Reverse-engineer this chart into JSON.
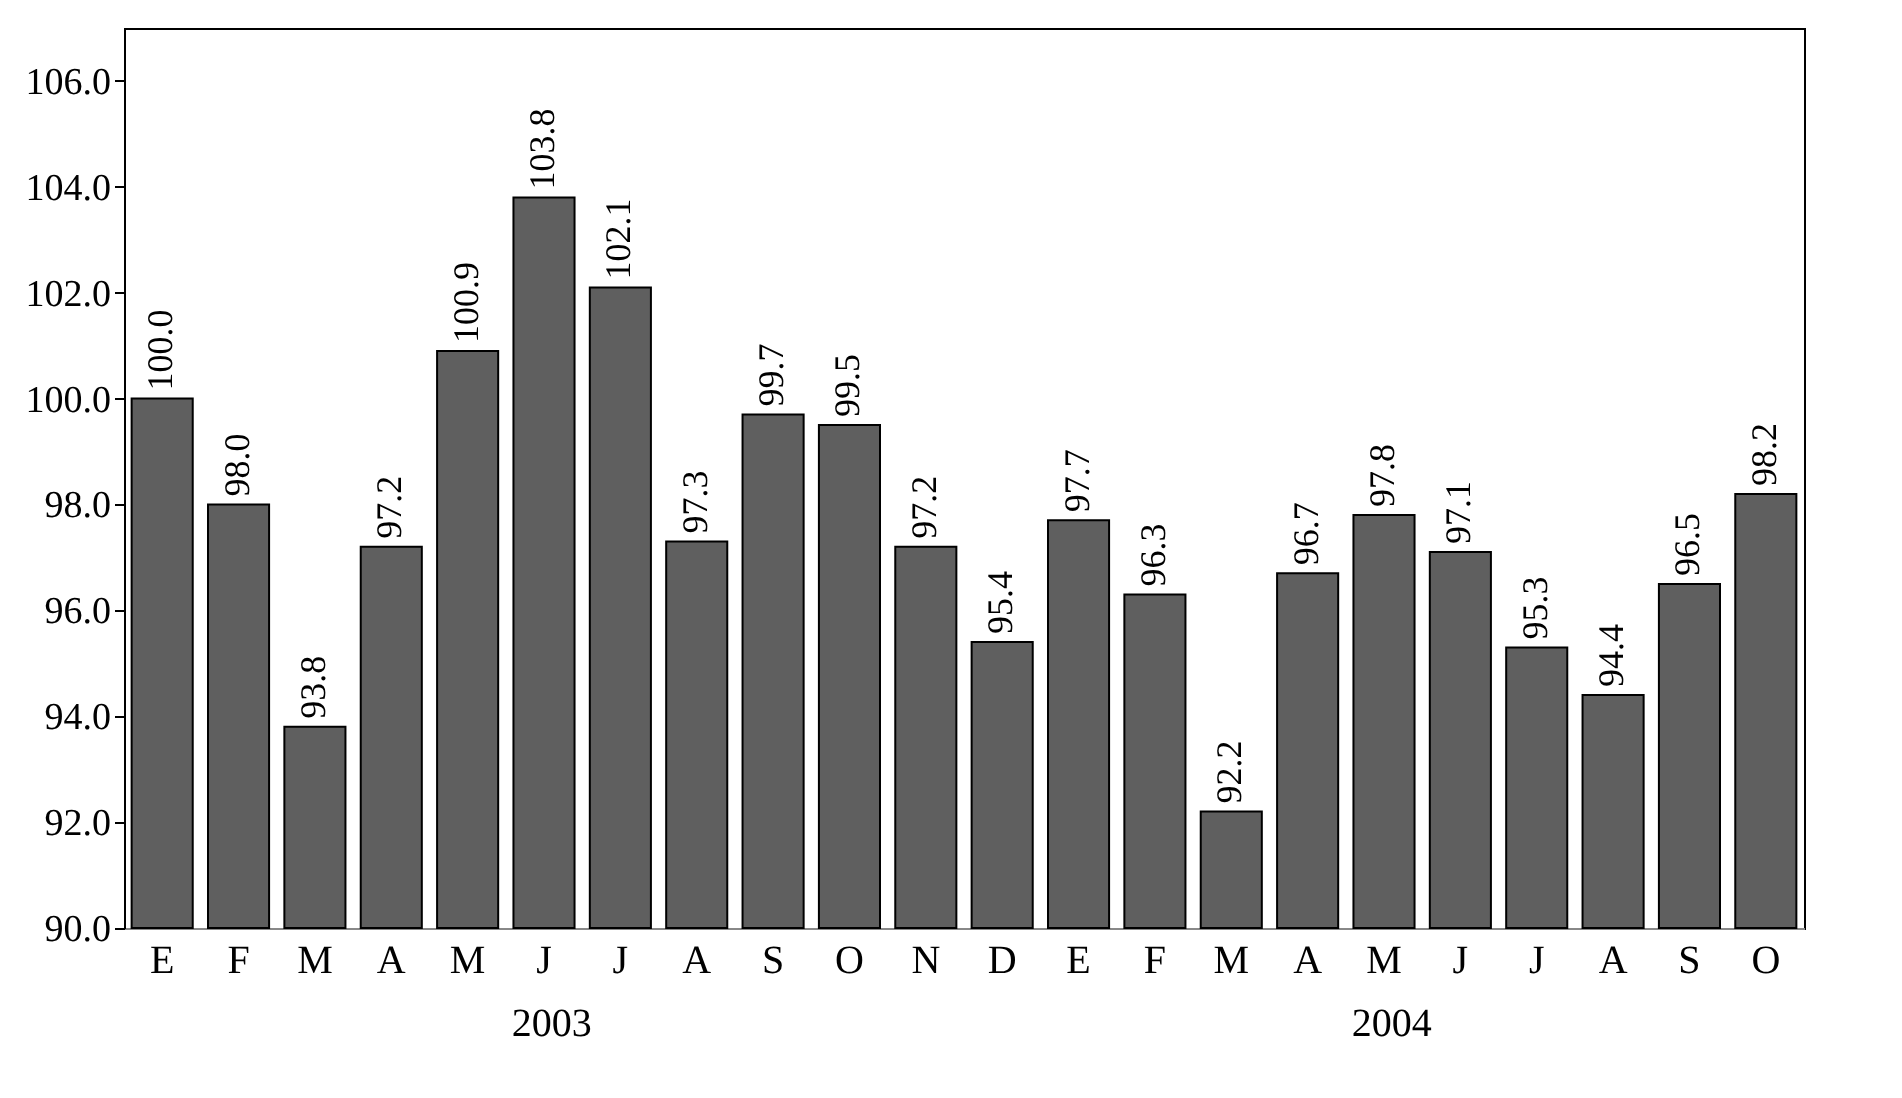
{
  "chart_data": {
    "type": "bar",
    "categories": [
      "E",
      "F",
      "M",
      "A",
      "M",
      "J",
      "J",
      "A",
      "S",
      "O",
      "N",
      "D",
      "E",
      "F",
      "M",
      "A",
      "M",
      "J",
      "J",
      "A",
      "S",
      "O"
    ],
    "values": [
      100.0,
      98.0,
      93.8,
      97.2,
      100.9,
      103.8,
      102.1,
      97.3,
      99.7,
      99.5,
      97.2,
      95.4,
      97.7,
      96.3,
      92.2,
      96.7,
      97.8,
      97.1,
      95.3,
      94.4,
      96.5,
      98.2
    ],
    "color": "#5f5f5f",
    "ylim": [
      90,
      107
    ],
    "yticks": [
      {
        "value": 90,
        "label": "90.0"
      },
      {
        "value": 92,
        "label": "92.0"
      },
      {
        "value": 94,
        "label": "94.0"
      },
      {
        "value": 96,
        "label": "96.0"
      },
      {
        "value": 98,
        "label": "98.0"
      },
      {
        "value": 100,
        "label": "100.0"
      },
      {
        "value": 102,
        "label": "102.0"
      },
      {
        "value": 104,
        "label": "104.0"
      },
      {
        "value": 106,
        "label": "106.0"
      }
    ],
    "value_labels": [
      "100.0",
      "98.0",
      "93.8",
      "97.2",
      "100.9",
      "103.8",
      "102.1",
      "97.3",
      "99.7",
      "99.5",
      "97.2",
      "95.4",
      "97.7",
      "96.3",
      "92.2",
      "96.7",
      "97.8",
      "97.1",
      "95.3",
      "94.4",
      "96.5",
      "98.2"
    ],
    "annotations": [
      "2003",
      "2004"
    ]
  }
}
